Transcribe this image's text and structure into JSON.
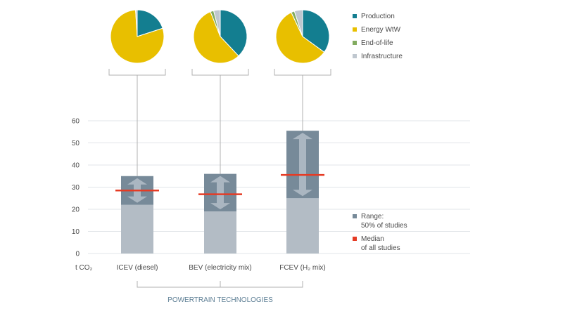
{
  "chart_data": {
    "type": "bar",
    "title": "",
    "ylabel": "",
    "unit": "t CO₂",
    "xlabel": "POWERTRAIN TECHNOLOGIES",
    "ylim": [
      0,
      60
    ],
    "yticks": [
      0,
      10,
      20,
      30,
      40,
      50,
      60
    ],
    "categories": [
      "ICEV (diesel)",
      "BEV (electricity mix)",
      "FCEV (H₂ mix)"
    ],
    "range_low": [
      22,
      19,
      25
    ],
    "range_high": [
      35,
      36,
      55.5
    ],
    "median": [
      28.5,
      26.8,
      35.5
    ],
    "grid": true,
    "pies": [
      {
        "category": "ICEV (diesel)",
        "slices": [
          {
            "name": "Production",
            "value": 20
          },
          {
            "name": "Energy WtW",
            "value": 79
          },
          {
            "name": "End-of-life",
            "value": 0
          },
          {
            "name": "Infrastructure",
            "value": 1
          }
        ]
      },
      {
        "category": "BEV (electricity mix)",
        "slices": [
          {
            "name": "Production",
            "value": 38
          },
          {
            "name": "Energy WtW",
            "value": 56
          },
          {
            "name": "End-of-life",
            "value": 2
          },
          {
            "name": "Infrastructure",
            "value": 4
          }
        ]
      },
      {
        "category": "FCEV (H₂ mix)",
        "slices": [
          {
            "name": "Production",
            "value": 35
          },
          {
            "name": "Energy WtW",
            "value": 58
          },
          {
            "name": "End-of-life",
            "value": 2
          },
          {
            "name": "Infrastructure",
            "value": 5
          }
        ]
      }
    ]
  },
  "legend_top": [
    {
      "label": "Production",
      "color": "#137e90"
    },
    {
      "label": "Energy WtW",
      "color": "#e8bf00"
    },
    {
      "label": "End-of-life",
      "color": "#82ab5f"
    },
    {
      "label": "Infrastructure",
      "color": "#bfc7cf"
    }
  ],
  "legend_bottom": [
    {
      "lines": [
        "Range:",
        "50% of studies"
      ],
      "color": "#778a99"
    },
    {
      "lines": [
        "Median",
        "of all studies"
      ],
      "color": "#e53b24"
    }
  ],
  "colors": {
    "base_bar": "#b3bcc5",
    "range_box": "#778a99",
    "arrow": "#aab6c1",
    "median": "#e53b24",
    "grid": "#e1e4e8",
    "connector": "#b0b0b0",
    "text": "#4a4a4a",
    "xlabel": "#5e7f95"
  }
}
